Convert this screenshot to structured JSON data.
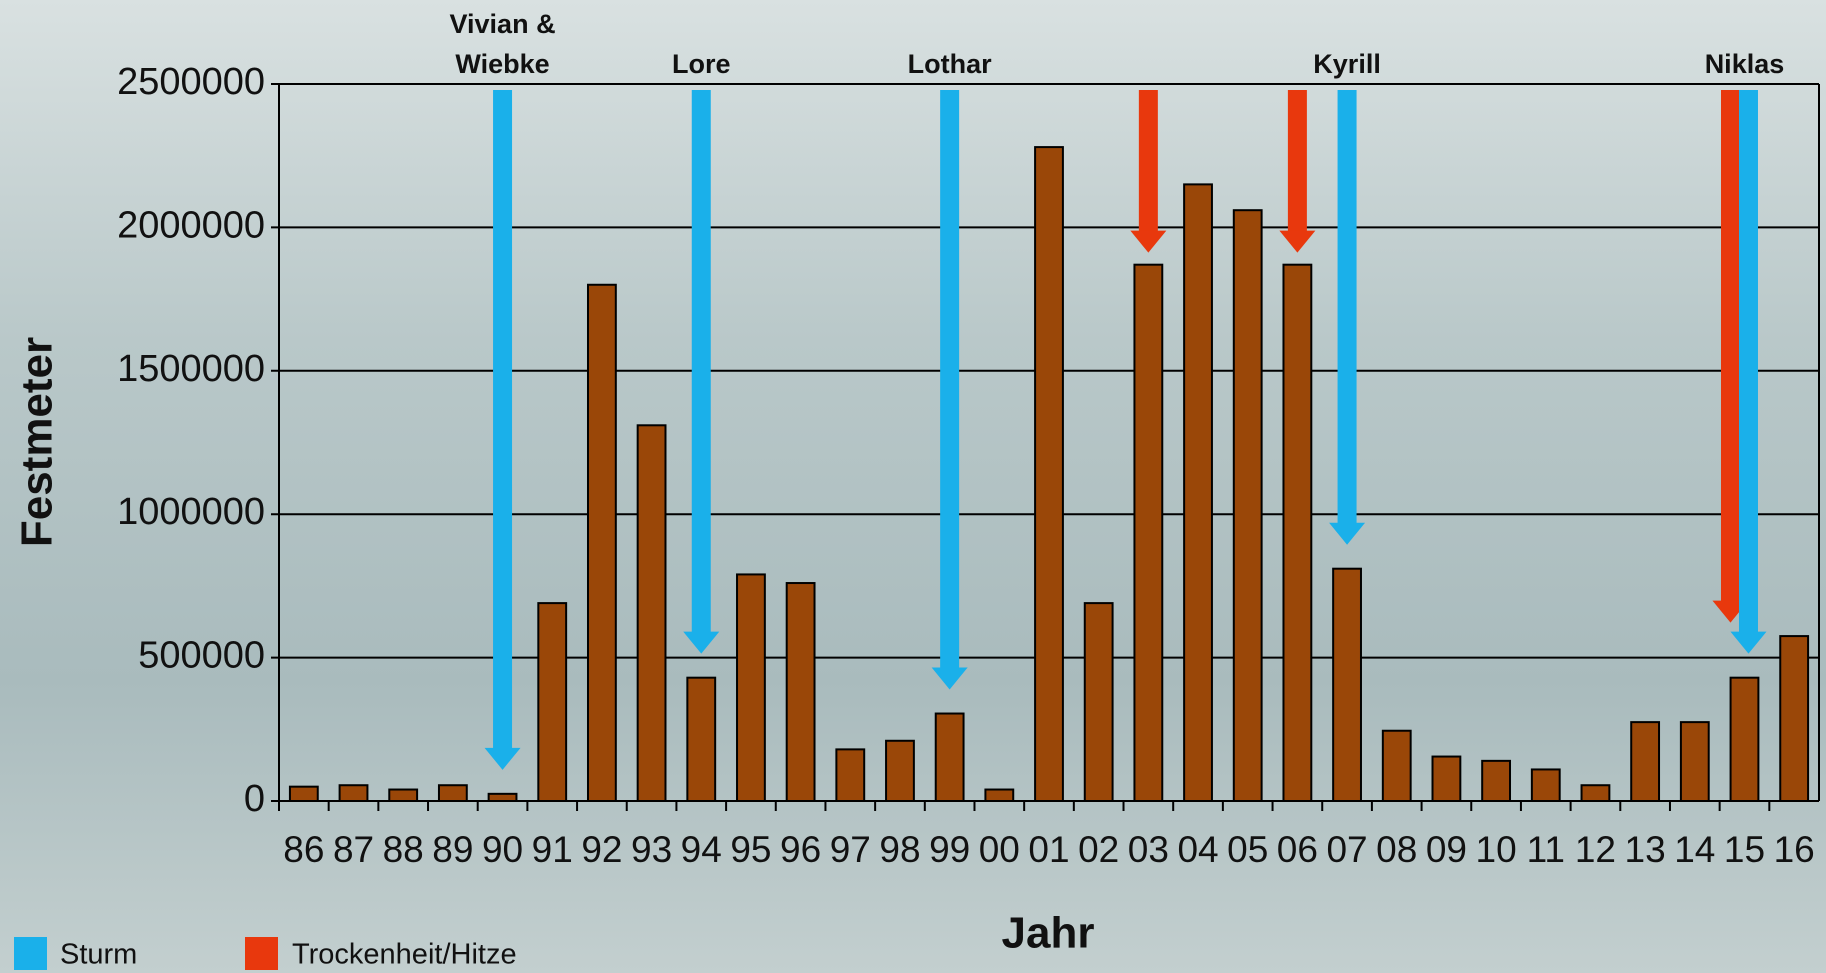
{
  "chart_data": {
    "type": "bar",
    "categories": [
      "86",
      "87",
      "88",
      "89",
      "90",
      "91",
      "92",
      "93",
      "94",
      "95",
      "96",
      "97",
      "98",
      "99",
      "00",
      "01",
      "02",
      "03",
      "04",
      "05",
      "06",
      "07",
      "08",
      "09",
      "10",
      "11",
      "12",
      "13",
      "14",
      "15",
      "16"
    ],
    "values": [
      50000,
      55000,
      40000,
      55000,
      25000,
      690000,
      1800000,
      1310000,
      430000,
      790000,
      760000,
      180000,
      210000,
      305000,
      40000,
      2280000,
      690000,
      1870000,
      2150000,
      2060000,
      1870000,
      810000,
      245000,
      155000,
      140000,
      110000,
      55000,
      275000,
      275000,
      430000,
      575000
    ],
    "color": "#9a4708",
    "ylim": [
      0,
      2500000
    ],
    "yticks": [
      0,
      500000,
      1000000,
      1500000,
      2000000,
      2500000
    ],
    "grid": true,
    "x_label": "Jahr",
    "y_label": "Festmeter",
    "storms": {
      "name": "Sturm",
      "color": "#1ab0ea",
      "events": [
        {
          "label": "Vivian & Wiebke",
          "x": "90"
        },
        {
          "label": "Lore",
          "x": "94"
        },
        {
          "label": "Lothar",
          "x": "99"
        },
        {
          "label": "Kyrill",
          "x": "07"
        },
        {
          "label": "Niklas",
          "x": "15"
        }
      ]
    },
    "drought": {
      "name": "Trockenheit/Hitze",
      "color": "#e8380d",
      "events": [
        {
          "x": "03"
        },
        {
          "x": "06"
        },
        {
          "x": "15"
        }
      ]
    }
  }
}
